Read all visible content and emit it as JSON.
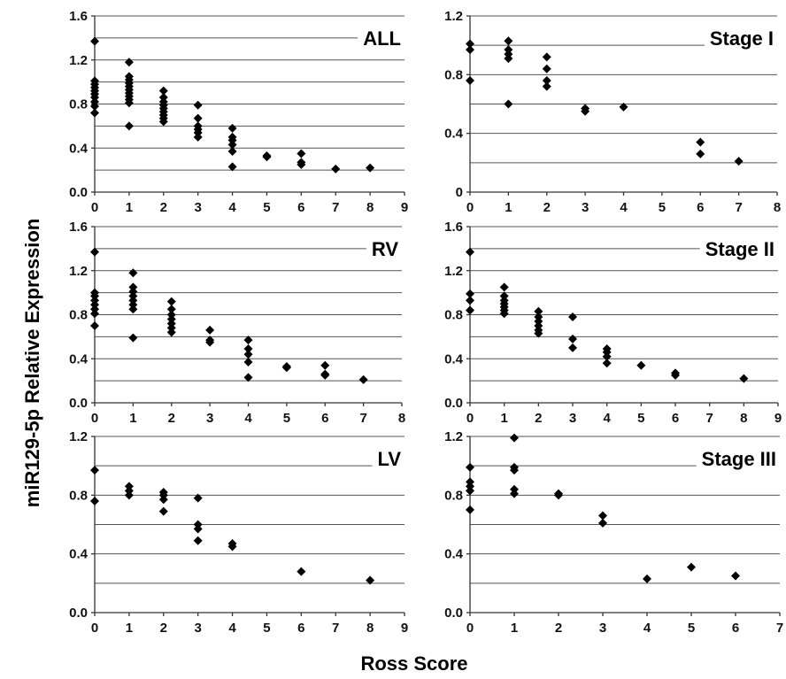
{
  "figure": {
    "ylabel": "miR129-5p  Relative  Expression",
    "xlabel": "Ross Score"
  },
  "chart_data": [
    {
      "type": "scatter",
      "title": "ALL",
      "xlim": [
        0,
        9
      ],
      "ylim": [
        0,
        1.6
      ],
      "xticks": [
        0,
        1,
        2,
        3,
        4,
        5,
        6,
        7,
        8,
        9
      ],
      "yticks": [
        0.0,
        0.4,
        0.8,
        1.2,
        1.6
      ],
      "ytick_labels": [
        "0.0",
        "0.4",
        "0.8",
        "1.2",
        "1.6"
      ],
      "grid": true,
      "marker": "diamond",
      "points": [
        [
          0,
          1.37
        ],
        [
          0,
          1.01
        ],
        [
          0,
          0.98
        ],
        [
          0,
          0.95
        ],
        [
          0,
          0.92
        ],
        [
          0,
          0.89
        ],
        [
          0,
          0.86
        ],
        [
          0,
          0.82
        ],
        [
          0,
          0.78
        ],
        [
          0,
          0.72
        ],
        [
          1,
          1.18
        ],
        [
          1,
          1.05
        ],
        [
          1,
          1.02
        ],
        [
          1,
          0.99
        ],
        [
          1,
          0.96
        ],
        [
          1,
          0.93
        ],
        [
          1,
          0.9
        ],
        [
          1,
          0.87
        ],
        [
          1,
          0.84
        ],
        [
          1,
          0.81
        ],
        [
          1,
          0.6
        ],
        [
          2,
          0.92
        ],
        [
          2,
          0.86
        ],
        [
          2,
          0.82
        ],
        [
          2,
          0.79
        ],
        [
          2,
          0.76
        ],
        [
          2,
          0.73
        ],
        [
          2,
          0.7
        ],
        [
          2,
          0.67
        ],
        [
          2,
          0.64
        ],
        [
          3,
          0.79
        ],
        [
          3,
          0.67
        ],
        [
          3,
          0.6
        ],
        [
          3,
          0.57
        ],
        [
          3,
          0.54
        ],
        [
          3,
          0.5
        ],
        [
          4,
          0.58
        ],
        [
          4,
          0.5
        ],
        [
          4,
          0.47
        ],
        [
          4,
          0.43
        ],
        [
          4,
          0.37
        ],
        [
          4,
          0.23
        ],
        [
          5,
          0.33
        ],
        [
          5,
          0.32
        ],
        [
          6,
          0.35
        ],
        [
          6,
          0.27
        ],
        [
          6,
          0.25
        ],
        [
          7,
          0.21
        ],
        [
          8,
          0.22
        ]
      ]
    },
    {
      "type": "scatter",
      "title": "Stage I",
      "xlim": [
        0,
        8
      ],
      "ylim": [
        0,
        1.2
      ],
      "xticks": [
        0,
        1,
        2,
        3,
        4,
        5,
        6,
        7,
        8
      ],
      "yticks": [
        0.0,
        0.4,
        0.8,
        1.2
      ],
      "ytick_labels": [
        "0",
        "0.4",
        "0.8",
        "1.2"
      ],
      "grid": true,
      "marker": "diamond",
      "points": [
        [
          0,
          1.01
        ],
        [
          0,
          0.97
        ],
        [
          0,
          0.76
        ],
        [
          1,
          1.03
        ],
        [
          1,
          0.97
        ],
        [
          1,
          0.94
        ],
        [
          1,
          0.91
        ],
        [
          1,
          0.6
        ],
        [
          2,
          0.92
        ],
        [
          2,
          0.84
        ],
        [
          2,
          0.76
        ],
        [
          2,
          0.72
        ],
        [
          3,
          0.57
        ],
        [
          3,
          0.55
        ],
        [
          4,
          0.58
        ],
        [
          6,
          0.34
        ],
        [
          6,
          0.26
        ],
        [
          7,
          0.21
        ]
      ]
    },
    {
      "type": "scatter",
      "title": "RV",
      "xlim": [
        0,
        8
      ],
      "ylim": [
        0,
        1.6
      ],
      "xticks": [
        0,
        1,
        2,
        3,
        4,
        5,
        6,
        7,
        8
      ],
      "yticks": [
        0.0,
        0.4,
        0.8,
        1.2,
        1.6
      ],
      "ytick_labels": [
        "0.0",
        "0.4",
        "0.8",
        "1.2",
        "1.6"
      ],
      "grid": true,
      "marker": "diamond",
      "points": [
        [
          0,
          1.37
        ],
        [
          0,
          1.0
        ],
        [
          0,
          0.97
        ],
        [
          0,
          0.93
        ],
        [
          0,
          0.89
        ],
        [
          0,
          0.85
        ],
        [
          0,
          0.81
        ],
        [
          0,
          0.7
        ],
        [
          1,
          1.18
        ],
        [
          1,
          1.05
        ],
        [
          1,
          1.01
        ],
        [
          1,
          0.97
        ],
        [
          1,
          0.93
        ],
        [
          1,
          0.89
        ],
        [
          1,
          0.85
        ],
        [
          1,
          0.59
        ],
        [
          2,
          0.92
        ],
        [
          2,
          0.85
        ],
        [
          2,
          0.8
        ],
        [
          2,
          0.76
        ],
        [
          2,
          0.72
        ],
        [
          2,
          0.68
        ],
        [
          2,
          0.64
        ],
        [
          3,
          0.66
        ],
        [
          3,
          0.57
        ],
        [
          3,
          0.55
        ],
        [
          4,
          0.57
        ],
        [
          4,
          0.49
        ],
        [
          4,
          0.44
        ],
        [
          4,
          0.37
        ],
        [
          4,
          0.23
        ],
        [
          5,
          0.33
        ],
        [
          5,
          0.32
        ],
        [
          6,
          0.34
        ],
        [
          6,
          0.26
        ],
        [
          6,
          0.25
        ],
        [
          7,
          0.21
        ]
      ]
    },
    {
      "type": "scatter",
      "title": "Stage II",
      "xlim": [
        0,
        9
      ],
      "ylim": [
        0,
        1.6
      ],
      "xticks": [
        0,
        1,
        2,
        3,
        4,
        5,
        6,
        7,
        8,
        9
      ],
      "yticks": [
        0.0,
        0.4,
        0.8,
        1.2,
        1.6
      ],
      "ytick_labels": [
        "0.0",
        "0.4",
        "0.8",
        "1.2",
        "1.6"
      ],
      "grid": true,
      "marker": "diamond",
      "points": [
        [
          0,
          1.37
        ],
        [
          0,
          0.99
        ],
        [
          0,
          0.93
        ],
        [
          0,
          0.84
        ],
        [
          1,
          1.05
        ],
        [
          1,
          0.97
        ],
        [
          1,
          0.93
        ],
        [
          1,
          0.9
        ],
        [
          1,
          0.87
        ],
        [
          1,
          0.84
        ],
        [
          1,
          0.81
        ],
        [
          2,
          0.83
        ],
        [
          2,
          0.78
        ],
        [
          2,
          0.74
        ],
        [
          2,
          0.7
        ],
        [
          2,
          0.66
        ],
        [
          2,
          0.63
        ],
        [
          3,
          0.78
        ],
        [
          3,
          0.58
        ],
        [
          3,
          0.5
        ],
        [
          4,
          0.49
        ],
        [
          4,
          0.46
        ],
        [
          4,
          0.42
        ],
        [
          4,
          0.36
        ],
        [
          5,
          0.34
        ],
        [
          6,
          0.27
        ],
        [
          6,
          0.25
        ],
        [
          8,
          0.22
        ]
      ]
    },
    {
      "type": "scatter",
      "title": "LV",
      "xlim": [
        0,
        9
      ],
      "ylim": [
        0,
        1.2
      ],
      "xticks": [
        0,
        1,
        2,
        3,
        4,
        5,
        6,
        7,
        8,
        9
      ],
      "yticks": [
        0.0,
        0.4,
        0.8,
        1.2
      ],
      "ytick_labels": [
        "0.0",
        "0.4",
        "0.8",
        "1.2"
      ],
      "grid": true,
      "marker": "diamond",
      "points": [
        [
          0,
          0.97
        ],
        [
          0,
          0.76
        ],
        [
          1,
          0.86
        ],
        [
          1,
          0.83
        ],
        [
          1,
          0.8
        ],
        [
          2,
          0.82
        ],
        [
          2,
          0.8
        ],
        [
          2,
          0.77
        ],
        [
          2,
          0.69
        ],
        [
          3,
          0.78
        ],
        [
          3,
          0.6
        ],
        [
          3,
          0.57
        ],
        [
          3,
          0.49
        ],
        [
          4,
          0.47
        ],
        [
          4,
          0.45
        ],
        [
          6,
          0.28
        ],
        [
          8,
          0.22
        ]
      ]
    },
    {
      "type": "scatter",
      "title": "Stage III",
      "xlim": [
        0,
        7
      ],
      "ylim": [
        0,
        1.2
      ],
      "xticks": [
        0,
        1,
        2,
        3,
        4,
        5,
        6,
        7
      ],
      "yticks": [
        0.0,
        0.4,
        0.8,
        1.2
      ],
      "ytick_labels": [
        "0.0",
        "0.4",
        "0.8",
        "1.2"
      ],
      "grid": true,
      "marker": "diamond",
      "points": [
        [
          0,
          0.99
        ],
        [
          0,
          0.89
        ],
        [
          0,
          0.86
        ],
        [
          0,
          0.83
        ],
        [
          0,
          0.7
        ],
        [
          1,
          1.19
        ],
        [
          1,
          0.99
        ],
        [
          1,
          0.97
        ],
        [
          1,
          0.84
        ],
        [
          1,
          0.81
        ],
        [
          2,
          0.81
        ],
        [
          2,
          0.8
        ],
        [
          3,
          0.66
        ],
        [
          3,
          0.61
        ],
        [
          4,
          0.23
        ],
        [
          5,
          0.31
        ],
        [
          6,
          0.25
        ]
      ]
    }
  ]
}
